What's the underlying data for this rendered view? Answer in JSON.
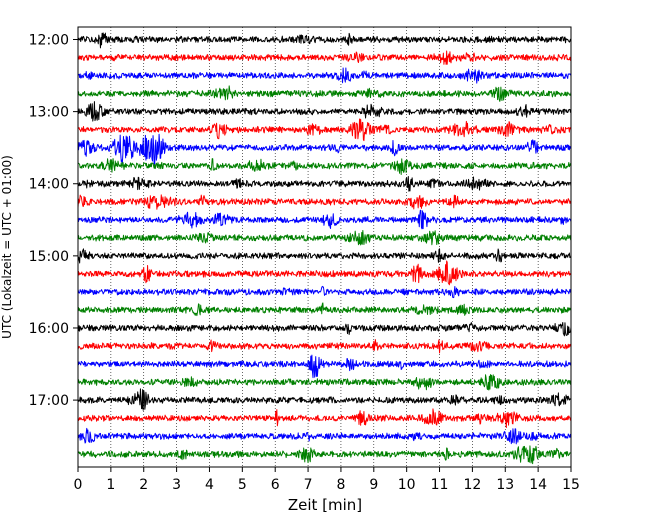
{
  "chart_data": {
    "type": "line",
    "title": "",
    "xlabel": "Zeit  [min]",
    "ylabel": "UTC (Lokalzeit = UTC + 01:00)",
    "xlim": [
      0,
      15
    ],
    "xticks": [
      "0",
      "1",
      "2",
      "3",
      "4",
      "5",
      "6",
      "7",
      "8",
      "9",
      "10",
      "11",
      "12",
      "13",
      "14",
      "15"
    ],
    "y_tick_labels": [
      "12:00",
      "13:00",
      "14:00",
      "15:00",
      "16:00",
      "17:00"
    ],
    "grid": "vertical dotted lines at each minute",
    "trace_interval_minutes": 15,
    "color_cycle": [
      "#000000",
      "#ff0000",
      "#0000ff",
      "#008000"
    ],
    "traces": [
      {
        "start": "12:00",
        "color": "#000000"
      },
      {
        "start": "12:15",
        "color": "#ff0000"
      },
      {
        "start": "12:30",
        "color": "#0000ff"
      },
      {
        "start": "12:45",
        "color": "#008000"
      },
      {
        "start": "13:00",
        "color": "#000000"
      },
      {
        "start": "13:15",
        "color": "#ff0000"
      },
      {
        "start": "13:30",
        "color": "#0000ff"
      },
      {
        "start": "13:45",
        "color": "#008000"
      },
      {
        "start": "14:00",
        "color": "#000000"
      },
      {
        "start": "14:15",
        "color": "#ff0000"
      },
      {
        "start": "14:30",
        "color": "#0000ff"
      },
      {
        "start": "14:45",
        "color": "#008000"
      },
      {
        "start": "15:00",
        "color": "#000000"
      },
      {
        "start": "15:15",
        "color": "#ff0000"
      },
      {
        "start": "15:30",
        "color": "#0000ff"
      },
      {
        "start": "15:45",
        "color": "#008000"
      },
      {
        "start": "16:00",
        "color": "#000000"
      },
      {
        "start": "16:15",
        "color": "#ff0000"
      },
      {
        "start": "16:30",
        "color": "#0000ff"
      },
      {
        "start": "16:45",
        "color": "#008000"
      },
      {
        "start": "17:00",
        "color": "#000000"
      },
      {
        "start": "17:15",
        "color": "#ff0000"
      },
      {
        "start": "17:30",
        "color": "#0000ff"
      },
      {
        "start": "17:45",
        "color": "#008000"
      }
    ]
  }
}
